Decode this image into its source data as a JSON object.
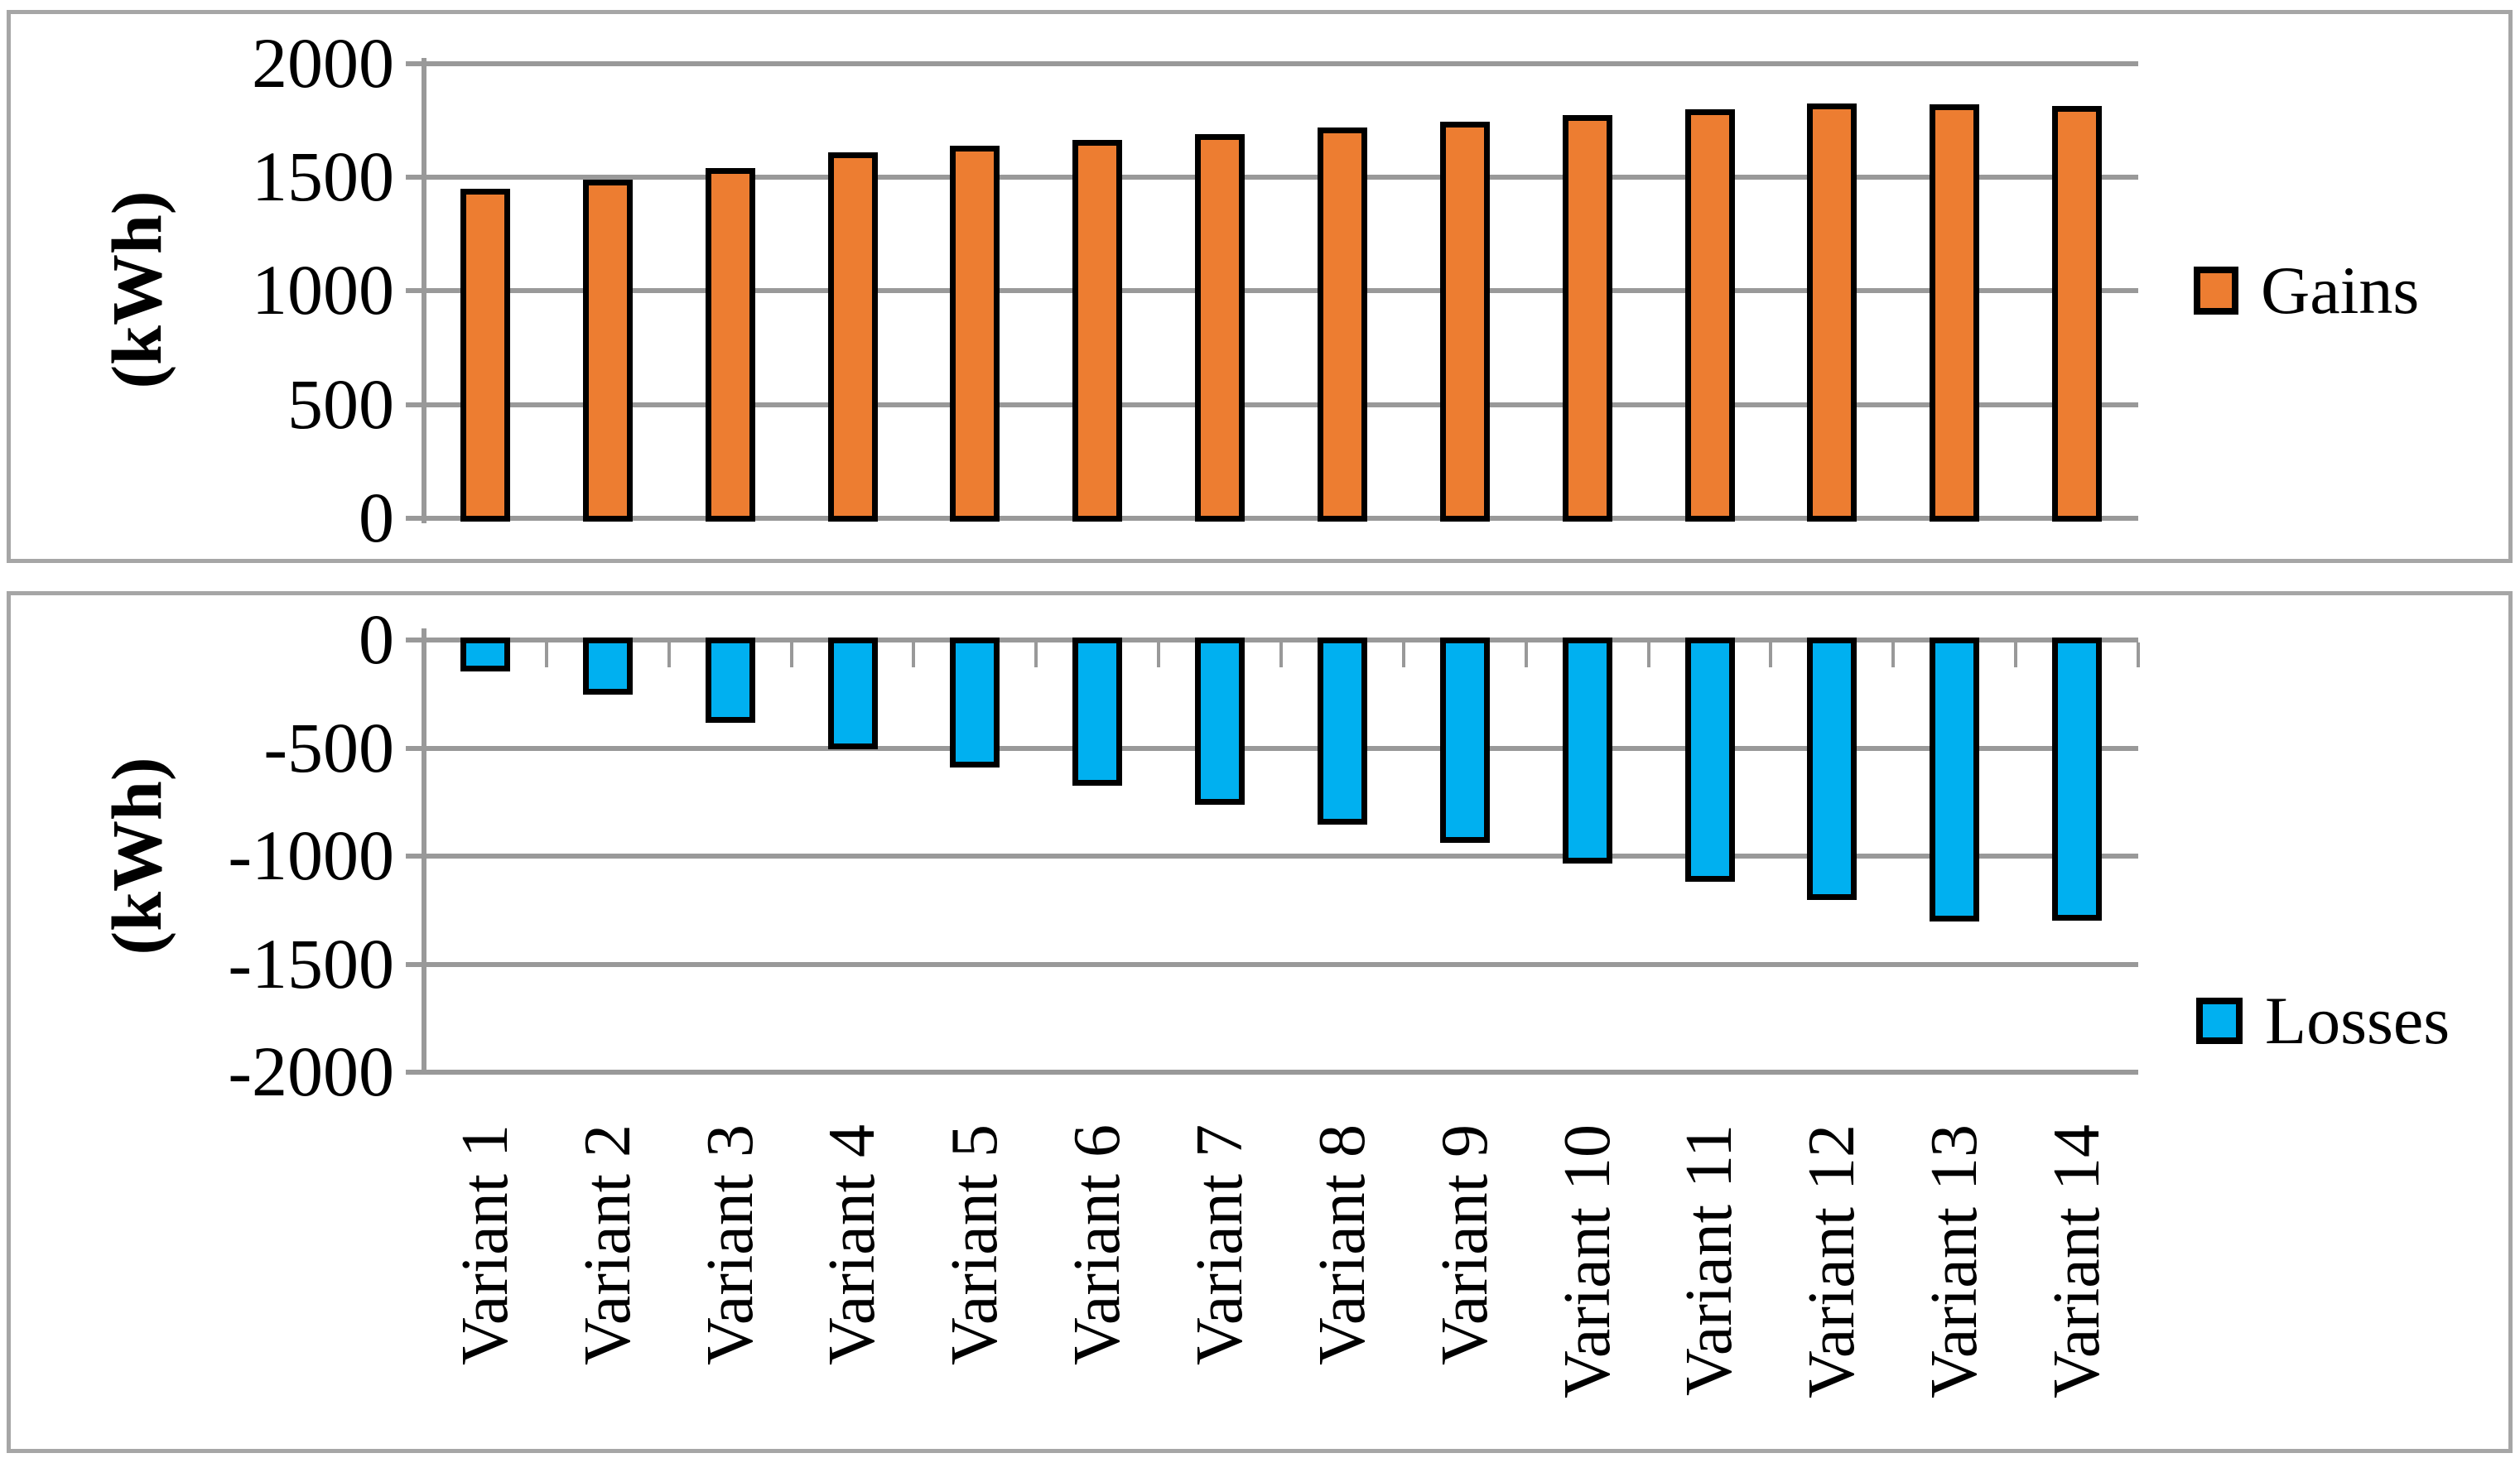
{
  "figure": {
    "background": "#ffffff",
    "panel_border_color": "#a6a6a6",
    "gridline_color": "#999999",
    "axis_color": "#999999",
    "text_color": "#000000"
  },
  "categories": [
    "Variant 1",
    "Variant 2",
    "Variant 3",
    "Variant 4",
    "Variant 5",
    "Variant 6",
    "Variant 7",
    "Variant 8",
    "Variant 9",
    "Variant 10",
    "Variant 11",
    "Variant 12",
    "Variant 13",
    "Variant 14"
  ],
  "chart_data": [
    {
      "type": "bar",
      "name": "Gains",
      "ylabel": "(kWh)",
      "categories": [
        "Variant 1",
        "Variant 2",
        "Variant 3",
        "Variant 4",
        "Variant 5",
        "Variant 6",
        "Variant 7",
        "Variant 8",
        "Variant 9",
        "Variant 10",
        "Variant 11",
        "Variant 12",
        "Variant 13",
        "Variant 14"
      ],
      "values": [
        1450,
        1490,
        1540,
        1610,
        1640,
        1665,
        1690,
        1720,
        1745,
        1775,
        1800,
        1825,
        1820,
        1815
      ],
      "ylim": [
        0,
        2000
      ],
      "ytick_labels": [
        "2000",
        "1500",
        "1000",
        "500",
        "0"
      ],
      "yticks": [
        2000,
        1500,
        1000,
        500,
        0
      ],
      "grid": true,
      "legend_position": "right",
      "bar_color": "#ED7D31",
      "bar_border_color": "#000000",
      "x_tick_labels_shown": false
    },
    {
      "type": "bar",
      "name": "Losses",
      "ylabel": "(kWh)",
      "categories": [
        "Variant 1",
        "Variant 2",
        "Variant 3",
        "Variant 4",
        "Variant 5",
        "Variant 6",
        "Variant 7",
        "Variant 8",
        "Variant 9",
        "Variant 10",
        "Variant 11",
        "Variant 12",
        "Variant 13",
        "Variant 14"
      ],
      "values": [
        -140,
        -250,
        -380,
        -500,
        -585,
        -670,
        -760,
        -850,
        -935,
        -1030,
        -1115,
        -1200,
        -1300,
        -1295
      ],
      "ylim": [
        0,
        -2000
      ],
      "ytick_labels": [
        "0",
        "-500",
        "-1000",
        "-1500",
        "-2000"
      ],
      "yticks": [
        0,
        -500,
        -1000,
        -1500,
        -2000
      ],
      "grid": true,
      "legend_position": "right",
      "bar_color": "#00B0F0",
      "bar_border_color": "#000000",
      "x_tick_labels_shown": true
    }
  ]
}
